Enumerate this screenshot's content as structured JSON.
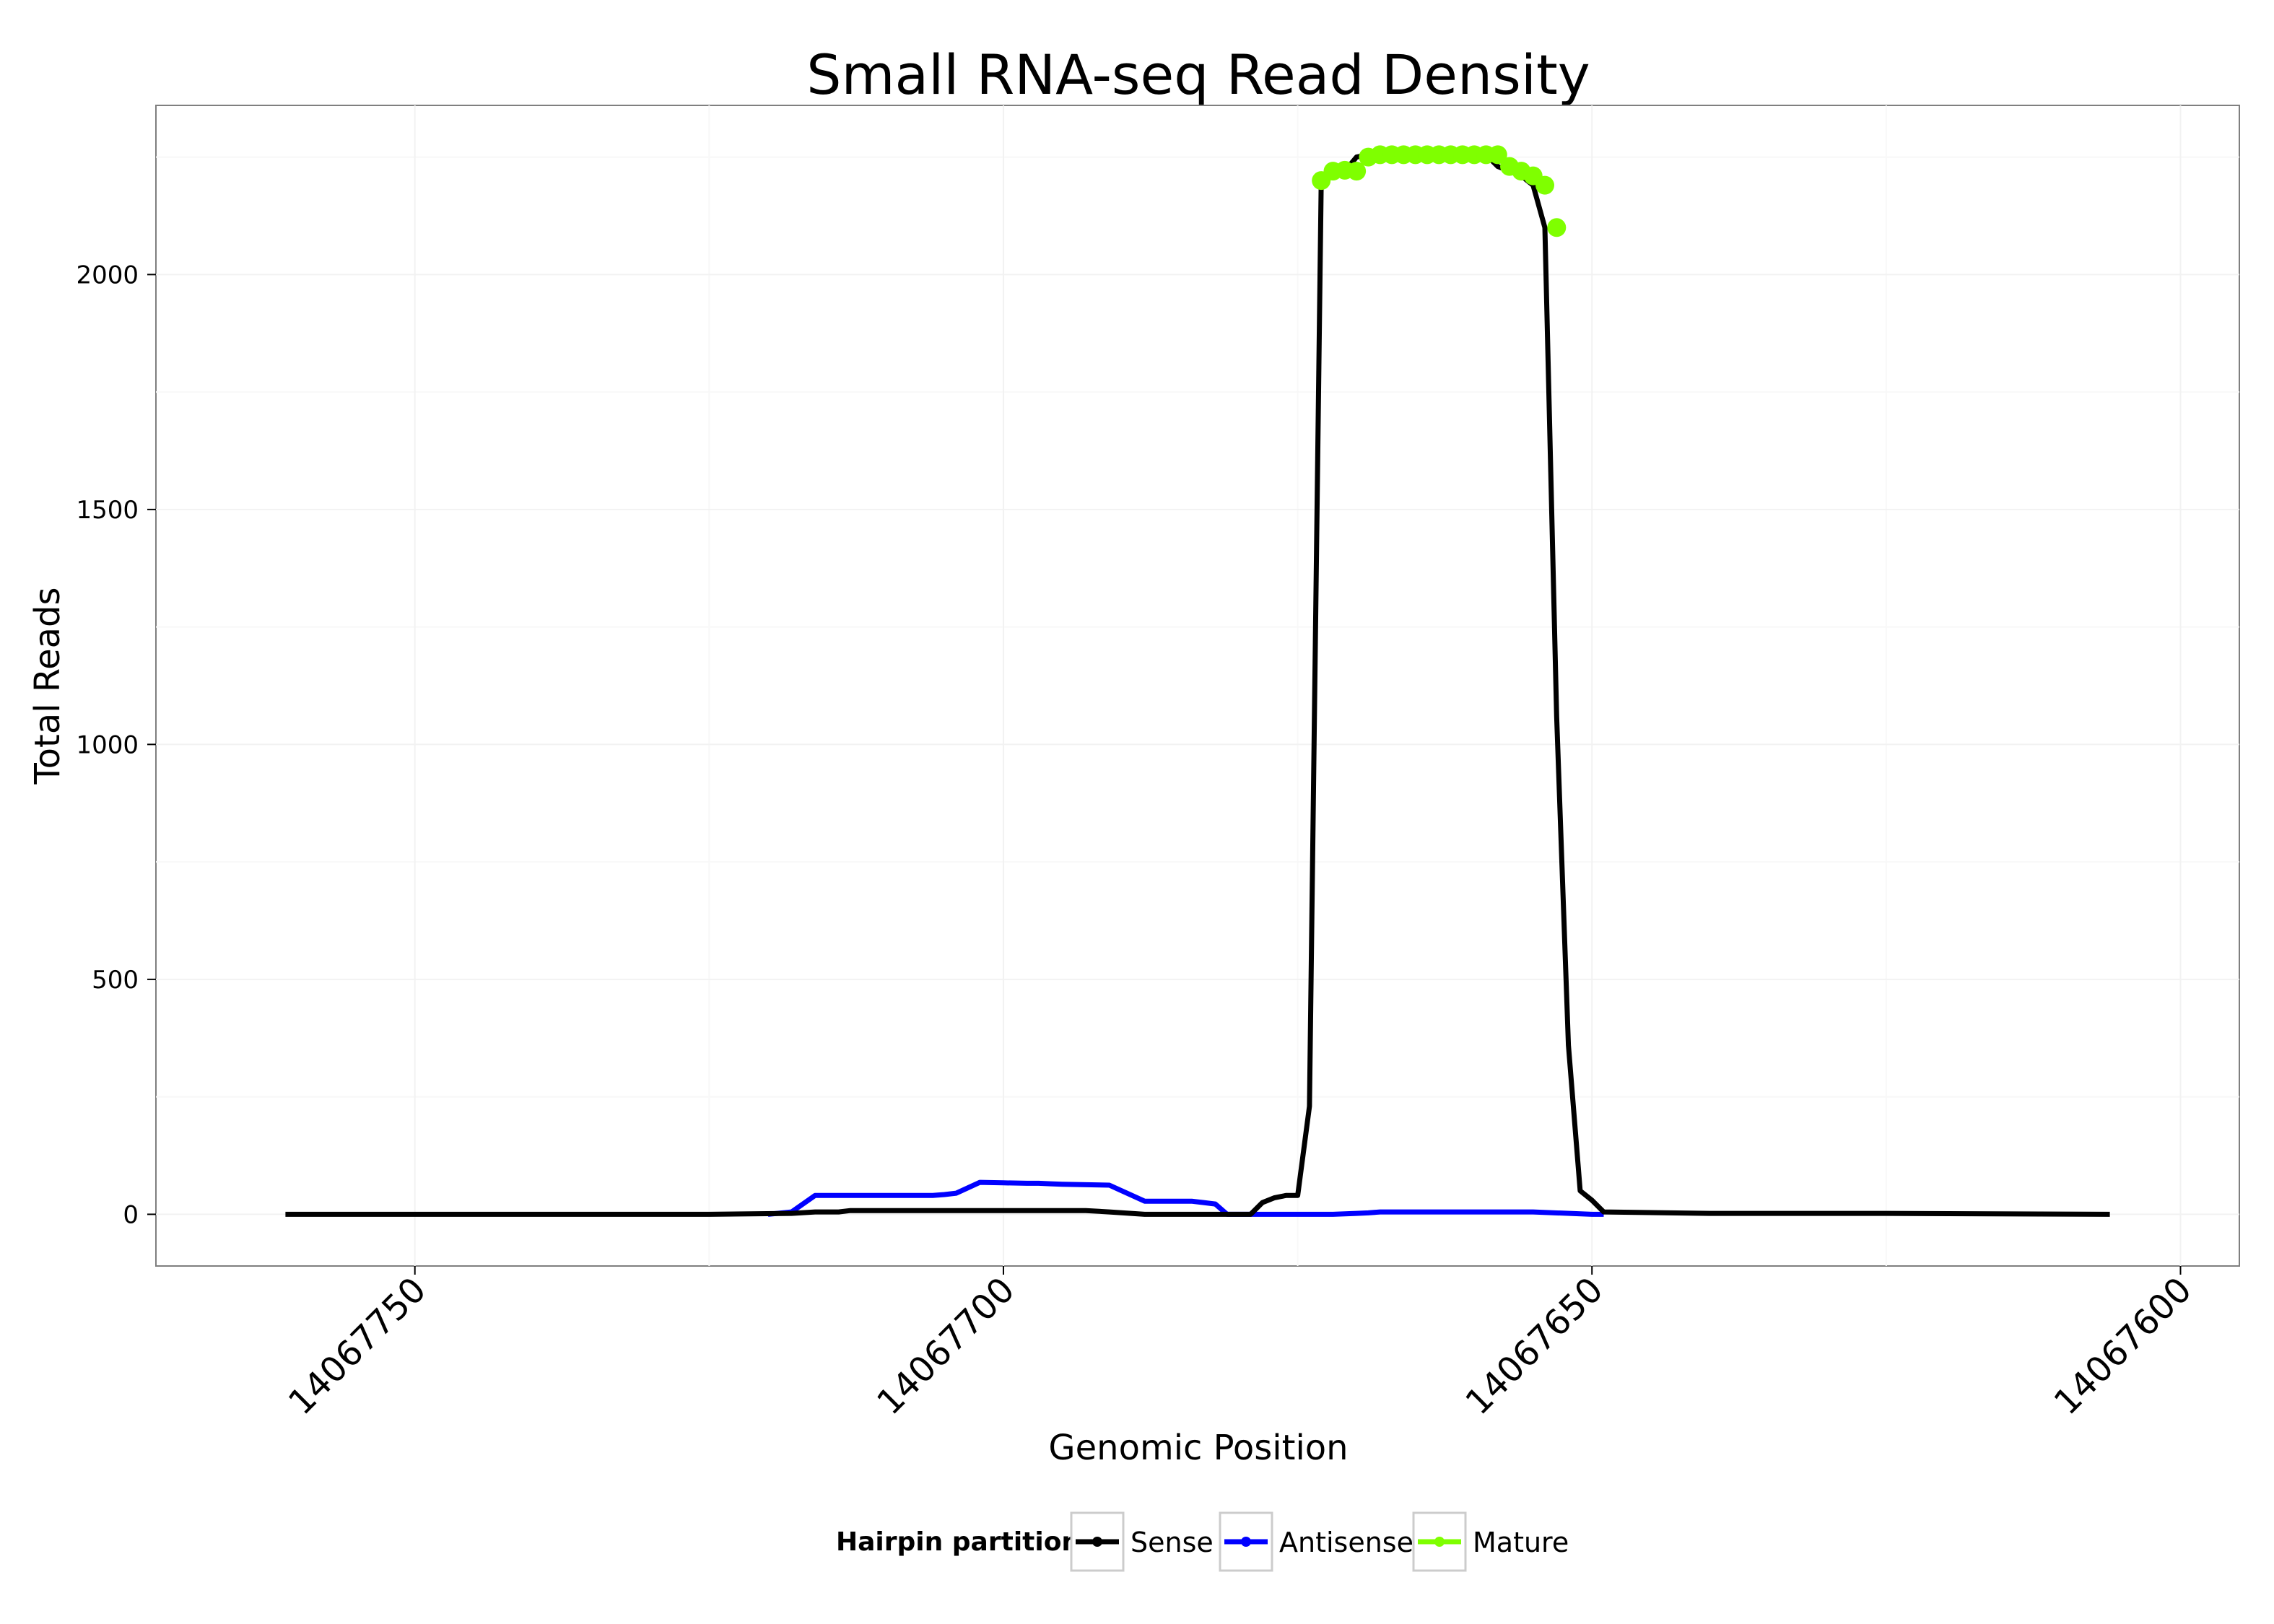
{
  "chart_data": {
    "type": "line",
    "title": "Small RNA-seq Read Density",
    "xlabel": "Genomic Position",
    "ylabel": "Total Reads",
    "x_reversed": true,
    "xlim": [
      14067595,
      14067772
    ],
    "ylim": [
      -110,
      2360
    ],
    "x_ticks": [
      14067750,
      14067700,
      14067650,
      14067600
    ],
    "x_tick_labels": [
      "14067750",
      "14067700",
      "14067650",
      "14067600"
    ],
    "y_ticks": [
      0,
      500,
      1000,
      1500,
      2000
    ],
    "y_tick_labels": [
      "0",
      "500",
      "1000",
      "1500",
      "2000"
    ],
    "grid": true,
    "legend": {
      "title": "Hairpin partition",
      "position": "bottom",
      "entries": [
        "Sense",
        "Antisense",
        "Mature"
      ]
    },
    "series": [
      {
        "name": "Sense",
        "color": "#000000",
        "x": [
          14067761,
          14067725,
          14067718,
          14067716,
          14067714,
          14067713,
          14067710,
          14067705,
          14067700,
          14067695,
          14067693,
          14067691,
          14067688,
          14067686,
          14067683,
          14067681,
          14067680,
          14067679,
          14067678,
          14067677,
          14067676,
          14067675,
          14067674,
          14067673,
          14067672,
          14067671,
          14067670,
          14067669,
          14067668,
          14067667,
          14067666,
          14067665,
          14067664,
          14067663,
          14067662,
          14067661,
          14067660,
          14067659,
          14067658,
          14067657,
          14067656,
          14067655,
          14067654,
          14067653,
          14067652,
          14067651,
          14067650,
          14067649,
          14067640,
          14067625,
          14067606
        ],
        "y": [
          0,
          0,
          2,
          5,
          5,
          8,
          8,
          8,
          8,
          8,
          8,
          5,
          0,
          0,
          0,
          0,
          0,
          0,
          25,
          35,
          40,
          40,
          230,
          2200,
          2220,
          2220,
          2250,
          2255,
          2255,
          2255,
          2255,
          2255,
          2255,
          2255,
          2255,
          2255,
          2255,
          2255,
          2230,
          2220,
          2210,
          2190,
          2100,
          1060,
          360,
          50,
          30,
          5,
          2,
          2,
          0
        ]
      },
      {
        "name": "Antisense",
        "color": "#0000ff",
        "x": [
          14067720,
          14067718,
          14067716,
          14067715,
          14067714,
          14067710,
          14067706,
          14067705,
          14067704,
          14067702,
          14067700,
          14067698,
          14067697,
          14067696,
          14067695,
          14067691,
          14067688,
          14067687,
          14067686,
          14067685,
          14067684,
          14067683,
          14067682,
          14067681,
          14067672,
          14067670,
          14067669,
          14067668,
          14067659,
          14067655,
          14067650,
          14067649
        ],
        "y": [
          0,
          5,
          40,
          40,
          40,
          40,
          40,
          42,
          45,
          68,
          67,
          66,
          66,
          65,
          64,
          62,
          28,
          28,
          28,
          28,
          28,
          25,
          22,
          0,
          0,
          2,
          3,
          5,
          5,
          5,
          0,
          0
        ]
      },
      {
        "name": "Mature",
        "color": "#7fff00",
        "markers": true,
        "x": [
          14067673,
          14067672,
          14067671,
          14067670,
          14067669,
          14067668,
          14067667,
          14067666,
          14067665,
          14067664,
          14067663,
          14067662,
          14067661,
          14067660,
          14067659,
          14067658,
          14067657,
          14067656,
          14067655,
          14067654,
          14067653
        ],
        "y": [
          2200,
          2220,
          2222,
          2220,
          2250,
          2255,
          2255,
          2255,
          2255,
          2255,
          2255,
          2255,
          2255,
          2255,
          2255,
          2255,
          2230,
          2220,
          2210,
          2190,
          2100
        ]
      }
    ]
  }
}
